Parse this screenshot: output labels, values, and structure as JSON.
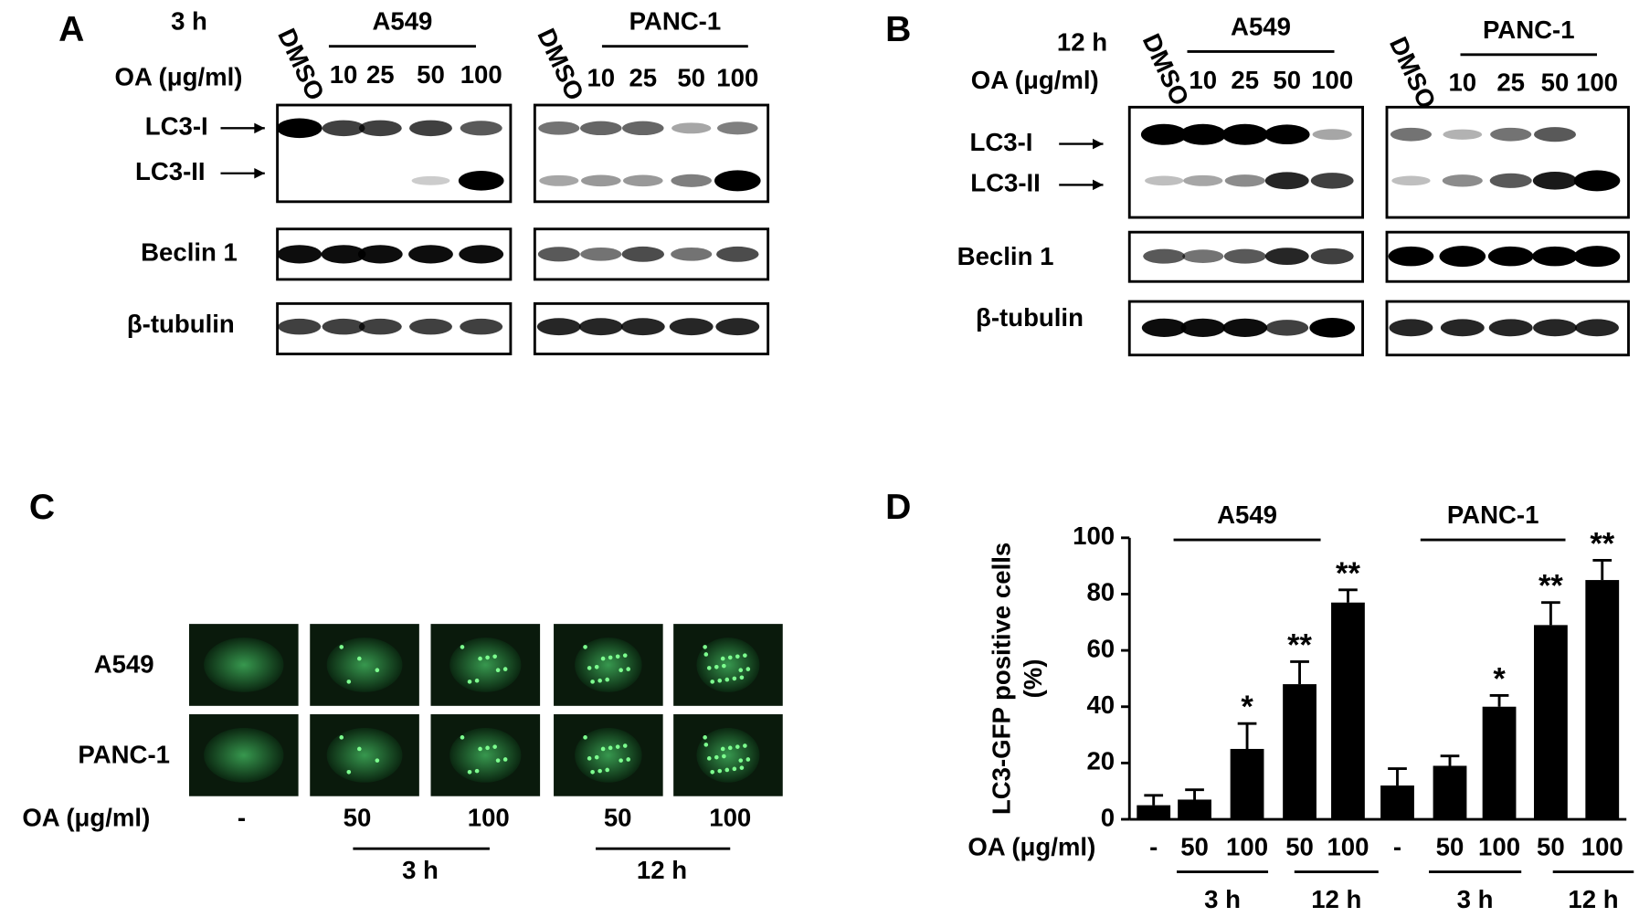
{
  "panels": {
    "A": {
      "label": "A",
      "time": "3 h",
      "treatment_label": "OA (μg/ml)",
      "cell_lines": [
        "A549",
        "PANC-1"
      ],
      "lanes": [
        "DMSO",
        "10",
        "25",
        "50",
        "100"
      ],
      "bands": [
        "LC3-I",
        "LC3-II",
        "Beclin 1",
        "β-tubulin"
      ]
    },
    "B": {
      "label": "B",
      "time": "12 h",
      "treatment_label": "OA (μg/ml)",
      "cell_lines": [
        "A549",
        "PANC-1"
      ],
      "lanes": [
        "DMSO",
        "10",
        "25",
        "50",
        "100"
      ],
      "bands": [
        "LC3-I",
        "LC3-II",
        "Beclin 1",
        "β-tubulin"
      ]
    },
    "C": {
      "label": "C",
      "rows": [
        "A549",
        "PANC-1"
      ],
      "treatment_label": "OA (μg/ml)",
      "doses": [
        "-",
        "50",
        "100",
        "50",
        "100"
      ],
      "times": [
        "3 h",
        "12 h"
      ]
    }
  },
  "chart_data": {
    "type": "bar",
    "label": "D",
    "y_label": "LC3-GFP positive cells",
    "y_unit": "(%)",
    "x_label": "OA (μg/ml)",
    "categories": [
      "-",
      "50",
      "100",
      "50",
      "100",
      "-",
      "50",
      "100",
      "50",
      "100"
    ],
    "values": [
      5,
      7,
      25,
      48,
      77,
      12,
      19,
      40,
      69,
      85
    ],
    "errors": [
      3.5,
      3.5,
      9,
      8,
      4.5,
      6,
      3.5,
      4,
      8,
      7
    ],
    "significance": [
      null,
      null,
      "*",
      "**",
      "**",
      null,
      null,
      "*",
      "**",
      "**"
    ],
    "groups": [
      "A549",
      "PANC-1"
    ],
    "times": [
      "3 h",
      "12 h",
      "3 h",
      "12 h"
    ],
    "color": "#000000",
    "ylim": [
      0,
      100
    ],
    "yticks": [
      0,
      20,
      40,
      60,
      80,
      100
    ]
  }
}
